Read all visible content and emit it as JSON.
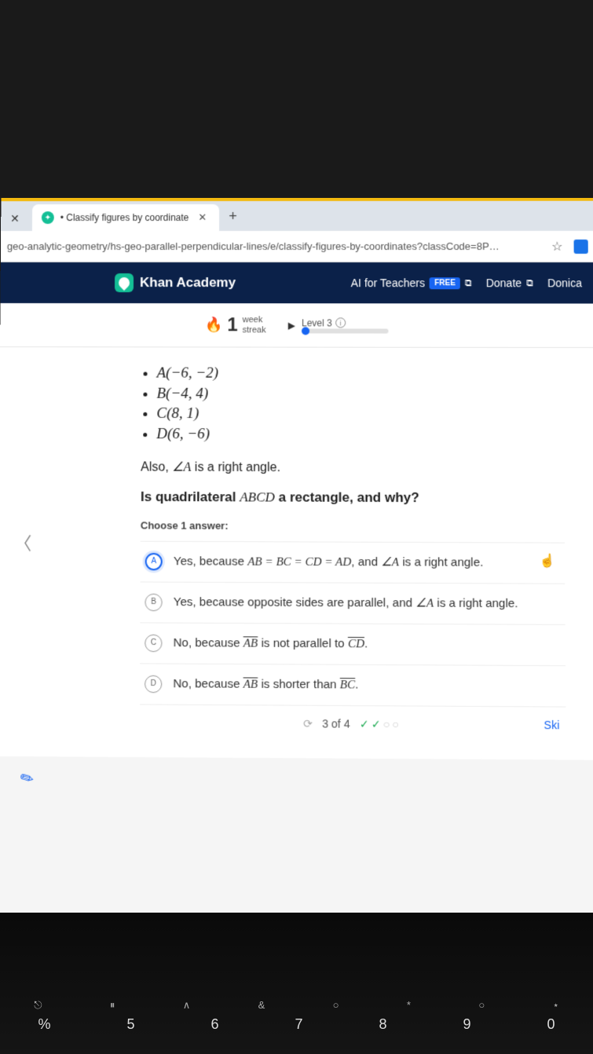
{
  "browser": {
    "tab_title": "• Classify figures by coordinate",
    "url": "geo-analytic-geometry/hs-geo-parallel-perpendicular-lines/e/classify-figures-by-coordinates?classCode=8P…"
  },
  "header": {
    "brand": "Khan Academy",
    "ai_link": "AI for Teachers",
    "free_badge": "FREE",
    "donate": "Donate",
    "user": "Donica"
  },
  "progress": {
    "streak_num": "1",
    "streak_l1": "week",
    "streak_l2": "streak",
    "level_label": "Level 3"
  },
  "question": {
    "points": [
      "A(−6, −2)",
      "B(−4, 4)",
      "C(8, 1)",
      "D(6, −6)"
    ],
    "also_prefix": "Also, ",
    "also_angle": "∠A",
    "also_suffix": " is a right angle.",
    "stem_prefix": "Is quadrilateral ",
    "stem_math": "ABCD",
    "stem_suffix": " a rectangle, and why?",
    "choose": "Choose 1 answer:"
  },
  "answers": {
    "a": {
      "letter": "A",
      "prefix": "Yes, because ",
      "m1": "AB = BC = CD = AD",
      "mid": ", and ",
      "m2": "∠A",
      "suffix": " is a right angle."
    },
    "b": {
      "letter": "B",
      "prefix": "Yes, because opposite sides are parallel, and ",
      "m1": "∠A",
      "suffix": " is a right angle."
    },
    "c": {
      "letter": "C",
      "prefix": "No, because ",
      "m1": "AB",
      "mid": " is not parallel to ",
      "m2": "CD",
      "suffix": "."
    },
    "d": {
      "letter": "D",
      "prefix": "No, because ",
      "m1": "AB",
      "mid": " is shorter than ",
      "m2": "BC",
      "suffix": "."
    }
  },
  "footer": {
    "counter": "3 of 4",
    "skip": "Ski"
  },
  "colors": {
    "khan_green": "#14bf96",
    "khan_blue": "#1865f2",
    "header_bg": "#0b2149",
    "tab_accent": "#f2b90f"
  }
}
